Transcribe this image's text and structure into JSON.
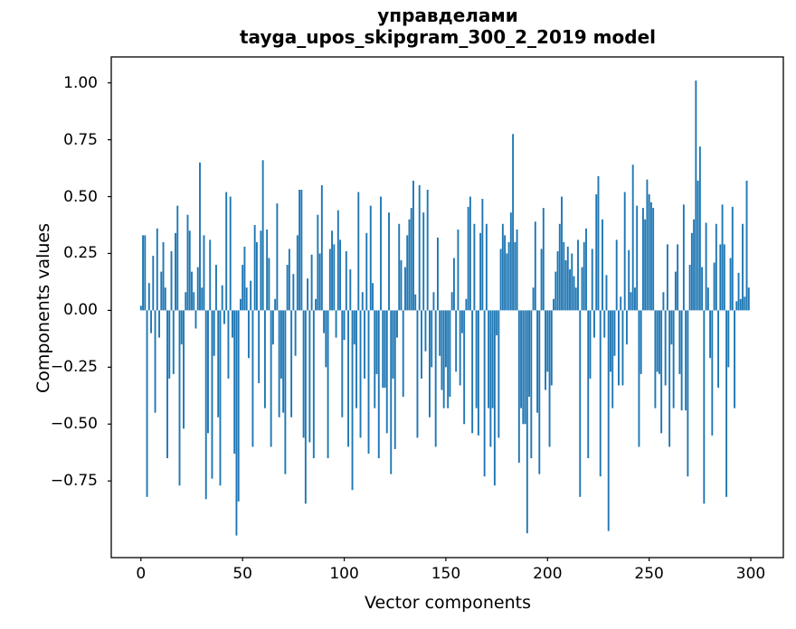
{
  "chart_data": {
    "type": "bar",
    "title_line1": "управделами",
    "title_line2": "tayga_upos_skipgram_300_2_2019 model",
    "xlabel": "Vector components",
    "ylabel": "Components values",
    "bar_color": "#1f77b4",
    "axis_color": "#000000",
    "xlim": [
      -14.6,
      316
    ],
    "ylim": [
      -1.087,
      1.114
    ],
    "xtick_values": [
      0,
      50,
      100,
      150,
      200,
      250,
      300
    ],
    "xtick_labels": [
      "0",
      "50",
      "100",
      "150",
      "200",
      "250",
      "300"
    ],
    "ytick_values": [
      1.0,
      0.75,
      0.5,
      0.25,
      0.0,
      -0.25,
      -0.5,
      -0.75
    ],
    "ytick_labels": [
      "1.00",
      "0.75",
      "0.50",
      "0.25",
      "0.00",
      "−0.25",
      "−0.50",
      "−0.75"
    ],
    "n_components": 300,
    "values": [
      0.02,
      0.33,
      0.33,
      -0.82,
      0.12,
      -0.1,
      0.24,
      -0.45,
      0.36,
      -0.12,
      0.17,
      0.3,
      0.1,
      -0.65,
      -0.3,
      0.26,
      -0.28,
      0.34,
      0.46,
      -0.77,
      -0.15,
      -0.52,
      0.08,
      0.42,
      0.35,
      0.17,
      0.08,
      -0.08,
      0.19,
      0.65,
      0.1,
      0.33,
      -0.83,
      -0.54,
      0.31,
      -0.74,
      -0.2,
      0.2,
      -0.47,
      -0.77,
      0.11,
      -0.06,
      0.52,
      -0.3,
      0.5,
      -0.12,
      -0.63,
      -0.99,
      -0.84,
      0.05,
      0.2,
      0.28,
      0.1,
      -0.21,
      0.13,
      -0.6,
      0.375,
      0.3,
      -0.32,
      0.35,
      0.66,
      -0.43,
      0.355,
      0.23,
      -0.6,
      -0.15,
      0.05,
      0.47,
      -0.47,
      -0.3,
      -0.45,
      -0.72,
      0.2,
      0.27,
      -0.47,
      0.16,
      -0.2,
      0.33,
      0.53,
      0.53,
      -0.56,
      -0.85,
      0.14,
      -0.58,
      0.245,
      -0.65,
      0.05,
      0.42,
      0.25,
      0.55,
      -0.1,
      -0.25,
      -0.65,
      0.27,
      0.35,
      0.29,
      -0.12,
      0.44,
      0.31,
      -0.47,
      -0.13,
      0.26,
      -0.6,
      0.18,
      -0.79,
      -0.15,
      -0.43,
      0.52,
      -0.56,
      0.08,
      -0.3,
      0.34,
      -0.63,
      0.46,
      0.12,
      -0.43,
      -0.28,
      -0.65,
      0.5,
      -0.34,
      -0.34,
      -0.54,
      0.43,
      -0.72,
      -0.3,
      -0.61,
      -0.12,
      0.38,
      0.22,
      -0.38,
      0.19,
      0.33,
      0.4,
      0.45,
      0.57,
      0.07,
      -0.56,
      0.55,
      -0.3,
      0.43,
      -0.18,
      0.53,
      -0.47,
      -0.25,
      0.08,
      -0.6,
      0.32,
      -0.2,
      -0.35,
      -0.43,
      -0.25,
      -0.43,
      -0.38,
      0.08,
      0.23,
      -0.27,
      0.355,
      -0.33,
      -0.1,
      -0.5,
      0.05,
      0.455,
      0.5,
      -0.54,
      0.38,
      -0.43,
      -0.55,
      0.34,
      0.49,
      -0.73,
      0.38,
      -0.43,
      -0.6,
      -0.43,
      -0.77,
      -0.11,
      -0.56,
      0.27,
      0.38,
      0.33,
      0.25,
      0.3,
      0.43,
      0.775,
      0.3,
      0.355,
      -0.67,
      -0.43,
      -0.5,
      -0.5,
      -0.98,
      -0.38,
      -0.65,
      0.1,
      0.39,
      -0.45,
      -0.72,
      0.27,
      0.45,
      -0.35,
      -0.27,
      -0.6,
      -0.33,
      0.05,
      0.17,
      0.26,
      0.38,
      0.5,
      0.3,
      0.22,
      0.28,
      0.18,
      0.25,
      0.15,
      0.1,
      0.31,
      -0.82,
      0.19,
      0.3,
      0.36,
      -0.65,
      -0.3,
      0.27,
      -0.12,
      0.51,
      0.59,
      -0.73,
      0.4,
      -0.12,
      0.155,
      -0.97,
      -0.27,
      -0.43,
      -0.2,
      0.31,
      -0.33,
      0.06,
      -0.33,
      0.52,
      -0.15,
      0.265,
      0.08,
      0.64,
      0.1,
      0.46,
      -0.6,
      -0.28,
      0.45,
      0.4,
      0.575,
      0.51,
      0.475,
      0.45,
      -0.43,
      -0.27,
      -0.28,
      -0.54,
      0.08,
      -0.33,
      0.29,
      -0.6,
      -0.15,
      -0.43,
      0.17,
      0.29,
      -0.28,
      -0.44,
      0.465,
      -0.44,
      -0.73,
      0.2,
      0.34,
      0.4,
      1.01,
      0.57,
      0.72,
      0.19,
      -0.85,
      0.385,
      0.1,
      -0.21,
      -0.55,
      0.21,
      0.38,
      -0.34,
      0.29,
      0.465,
      0.29,
      -0.82,
      -0.25,
      0.23,
      0.455,
      -0.43,
      0.04,
      0.165,
      0.05,
      0.38,
      0.06,
      0.57,
      0.1
    ]
  }
}
